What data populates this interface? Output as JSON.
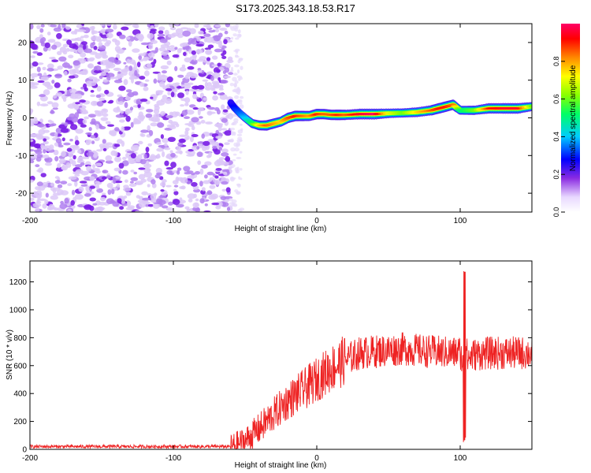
{
  "title": "S173.2025.343.18.53.R17",
  "chart_data": [
    {
      "type": "heatmap",
      "xlabel": "Height of straight line (km)",
      "ylabel": "Frequency (Hz)",
      "xlim": [
        -200,
        150
      ],
      "ylim": [
        -25,
        25
      ],
      "xticks": [
        -200,
        -100,
        0,
        100
      ],
      "yticks": [
        -20,
        -10,
        0,
        10,
        20
      ],
      "colorbar": {
        "label": "Normalized spectral amplitude",
        "range": [
          0,
          1
        ],
        "ticks": [
          "0.0",
          "0.2",
          "0.4",
          "0.6",
          "0.8"
        ]
      },
      "noise_region": {
        "x": [
          -200,
          -60
        ],
        "y": [
          -25,
          25
        ]
      },
      "ridge": {
        "x": [
          -60,
          -57,
          -53,
          -50,
          -45,
          -40,
          -35,
          -30,
          -25,
          -20,
          -15,
          -10,
          -5,
          0,
          5,
          10,
          15,
          20,
          30,
          40,
          50,
          60,
          70,
          80,
          85,
          90,
          95,
          100,
          105,
          110,
          120,
          130,
          140,
          150
        ],
        "freq": [
          4,
          2.5,
          1,
          0,
          -1.5,
          -2,
          -2,
          -1.5,
          -1,
          0,
          0.5,
          0.5,
          0.5,
          1,
          1,
          0.8,
          0.8,
          0.8,
          1,
          1,
          1.2,
          1.3,
          1.5,
          2,
          2.5,
          3,
          3.5,
          2,
          2,
          2,
          2.5,
          2.5,
          2.5,
          3
        ],
        "amp": [
          0.25,
          0.3,
          0.35,
          0.4,
          0.55,
          0.75,
          0.85,
          0.8,
          0.75,
          0.85,
          0.9,
          0.85,
          0.8,
          0.9,
          0.85,
          0.85,
          0.9,
          0.85,
          0.95,
          1.0,
          0.7,
          0.6,
          0.75,
          0.85,
          0.9,
          0.9,
          0.85,
          0.5,
          0.55,
          0.6,
          0.9,
          0.95,
          0.95,
          0.6
        ]
      }
    },
    {
      "type": "line",
      "xlabel": "Height of straight line (km)",
      "ylabel": "SNR (10 * v/v)",
      "xlim": [
        -200,
        150
      ],
      "ylim": [
        0,
        1350
      ],
      "xticks": [
        -200,
        -100,
        0,
        100
      ],
      "yticks": [
        0,
        200,
        400,
        600,
        800,
        1000,
        1200
      ],
      "series": [
        {
          "name": "SNR",
          "color": "#ee2222",
          "mean_profile": {
            "x": [
              -200,
              -60,
              -50,
              -40,
              -30,
              -20,
              -10,
              0,
              10,
              20,
              30,
              40,
              60,
              80,
              95,
              100,
              102,
              103,
              105,
              110,
              120,
              150
            ],
            "y": [
              20,
              20,
              60,
              150,
              250,
              350,
              420,
              500,
              580,
              640,
              690,
              700,
              720,
              700,
              690,
              700,
              600,
              900,
              650,
              680,
              690,
              690
            ]
          },
          "spike": {
            "x": 103,
            "max": 1320,
            "min": 20
          }
        }
      ]
    }
  ]
}
